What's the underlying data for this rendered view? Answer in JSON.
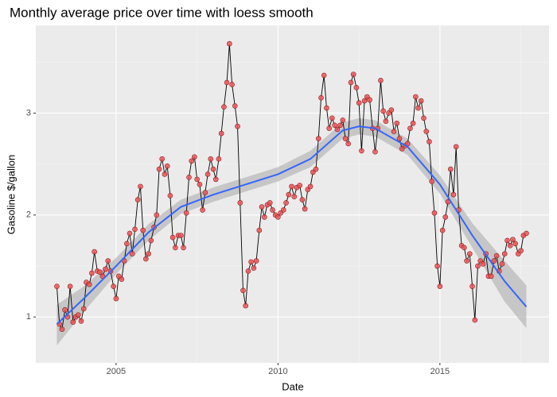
{
  "chart_data": {
    "type": "line",
    "title": "Monthly average price over time with loess smooth",
    "x_label": "Date",
    "y_label": "Gasoline $/gallon",
    "xlim": [
      2002.52,
      2018.37
    ],
    "ylim": [
      0.55,
      3.86
    ],
    "xticks": [
      2005,
      2010,
      2015
    ],
    "yticks": [
      1,
      2,
      3
    ],
    "xminor": [
      2007.5,
      2012.5,
      2017.5
    ],
    "yminor": [
      1.5,
      2.5,
      3.5
    ],
    "grid": true,
    "series": [
      {
        "color": "#000000",
        "point_color": "#f0585b",
        "x": [
          2003.17,
          2003.25,
          2003.33,
          2003.42,
          2003.5,
          2003.58,
          2003.67,
          2003.75,
          2003.83,
          2003.92,
          2004.0,
          2004.08,
          2004.17,
          2004.25,
          2004.33,
          2004.42,
          2004.5,
          2004.58,
          2004.67,
          2004.75,
          2004.83,
          2004.92,
          2005.0,
          2005.08,
          2005.17,
          2005.25,
          2005.33,
          2005.42,
          2005.5,
          2005.58,
          2005.67,
          2005.75,
          2005.83,
          2005.92,
          2006.0,
          2006.08,
          2006.17,
          2006.25,
          2006.33,
          2006.42,
          2006.5,
          2006.58,
          2006.67,
          2006.75,
          2006.83,
          2006.92,
          2007.0,
          2007.08,
          2007.17,
          2007.25,
          2007.33,
          2007.42,
          2007.5,
          2007.58,
          2007.67,
          2007.75,
          2007.83,
          2007.92,
          2008.0,
          2008.08,
          2008.17,
          2008.25,
          2008.33,
          2008.42,
          2008.5,
          2008.58,
          2008.67,
          2008.75,
          2008.83,
          2008.92,
          2009.0,
          2009.08,
          2009.17,
          2009.25,
          2009.33,
          2009.42,
          2009.5,
          2009.58,
          2009.67,
          2009.75,
          2009.83,
          2009.92,
          2010.0,
          2010.08,
          2010.17,
          2010.25,
          2010.33,
          2010.42,
          2010.5,
          2010.58,
          2010.67,
          2010.75,
          2010.83,
          2010.92,
          2011.0,
          2011.08,
          2011.17,
          2011.25,
          2011.33,
          2011.42,
          2011.5,
          2011.58,
          2011.67,
          2011.75,
          2011.83,
          2011.92,
          2012.0,
          2012.08,
          2012.17,
          2012.25,
          2012.33,
          2012.42,
          2012.5,
          2012.58,
          2012.67,
          2012.75,
          2012.83,
          2012.92,
          2013.0,
          2013.08,
          2013.17,
          2013.25,
          2013.33,
          2013.42,
          2013.5,
          2013.58,
          2013.67,
          2013.75,
          2013.83,
          2013.92,
          2014.0,
          2014.08,
          2014.17,
          2014.25,
          2014.33,
          2014.42,
          2014.5,
          2014.58,
          2014.67,
          2014.75,
          2014.83,
          2014.92,
          2015.0,
          2015.08,
          2015.17,
          2015.25,
          2015.33,
          2015.42,
          2015.5,
          2015.58,
          2015.67,
          2015.75,
          2015.83,
          2015.92,
          2016.0,
          2016.08,
          2016.17,
          2016.25,
          2016.33,
          2016.42,
          2016.5,
          2016.58,
          2016.67,
          2016.75,
          2016.83,
          2016.92,
          2017.0,
          2017.08,
          2017.17,
          2017.25,
          2017.33,
          2017.42,
          2017.5,
          2017.58,
          2017.67
        ],
        "values": [
          1.3,
          0.93,
          0.88,
          1.07,
          1.0,
          1.3,
          0.95,
          1.0,
          1.02,
          0.96,
          1.08,
          1.34,
          1.32,
          1.43,
          1.64,
          1.45,
          1.44,
          1.4,
          1.47,
          1.55,
          1.45,
          1.3,
          1.18,
          1.4,
          1.37,
          1.55,
          1.72,
          1.82,
          1.62,
          1.86,
          2.15,
          2.28,
          1.85,
          1.57,
          1.62,
          1.75,
          1.88,
          2.0,
          2.45,
          2.55,
          2.4,
          2.48,
          2.19,
          1.78,
          1.68,
          1.8,
          1.8,
          1.68,
          2.02,
          2.37,
          2.53,
          2.57,
          2.35,
          2.3,
          2.05,
          2.22,
          2.4,
          2.55,
          2.45,
          2.35,
          2.55,
          2.8,
          3.06,
          3.3,
          3.68,
          3.28,
          3.07,
          2.87,
          2.12,
          1.26,
          1.11,
          1.45,
          1.54,
          1.48,
          1.55,
          1.85,
          2.08,
          1.98,
          2.1,
          2.12,
          2.05,
          2.0,
          1.98,
          2.02,
          2.05,
          2.12,
          2.2,
          2.28,
          2.18,
          2.27,
          2.29,
          2.15,
          2.06,
          2.25,
          2.28,
          2.42,
          2.45,
          2.75,
          3.15,
          3.37,
          3.05,
          2.85,
          2.95,
          2.88,
          2.84,
          2.88,
          2.93,
          2.75,
          2.7,
          3.3,
          3.38,
          3.25,
          3.1,
          2.63,
          3.12,
          3.16,
          3.13,
          2.85,
          2.62,
          2.85,
          3.32,
          3.02,
          2.92,
          3.0,
          3.03,
          2.82,
          2.9,
          2.75,
          2.65,
          2.68,
          2.7,
          2.85,
          2.9,
          3.16,
          3.05,
          3.12,
          2.95,
          2.82,
          2.72,
          2.33,
          2.02,
          1.5,
          1.3,
          1.85,
          1.98,
          2.13,
          2.45,
          2.2,
          2.67,
          2.05,
          1.7,
          1.68,
          1.55,
          1.62,
          1.3,
          0.97,
          1.5,
          1.55,
          1.52,
          1.62,
          1.4,
          1.4,
          1.55,
          1.6,
          1.45,
          1.52,
          1.62,
          1.75,
          1.7,
          1.76,
          1.72,
          1.62,
          1.65,
          1.8,
          1.82
        ]
      }
    ],
    "smooth": {
      "color": "#3366ff",
      "band_color": "#bdbdbd",
      "x": [
        2003.17,
        2004,
        2005,
        2006,
        2007,
        2008,
        2009,
        2010,
        2011,
        2012,
        2012.5,
        2013,
        2014,
        2015,
        2016,
        2017,
        2017.67
      ],
      "values": [
        0.93,
        1.18,
        1.5,
        1.83,
        2.08,
        2.2,
        2.3,
        2.4,
        2.55,
        2.83,
        2.87,
        2.85,
        2.67,
        2.3,
        1.8,
        1.35,
        1.1
      ],
      "lower": [
        0.72,
        1.05,
        1.42,
        1.75,
        2.01,
        2.13,
        2.23,
        2.33,
        2.47,
        2.75,
        2.79,
        2.77,
        2.59,
        2.21,
        1.68,
        1.15,
        0.89
      ],
      "upper": [
        1.12,
        1.3,
        1.58,
        1.91,
        2.15,
        2.27,
        2.37,
        2.47,
        2.63,
        2.91,
        2.95,
        2.93,
        2.75,
        2.39,
        1.92,
        1.55,
        1.31
      ]
    }
  }
}
